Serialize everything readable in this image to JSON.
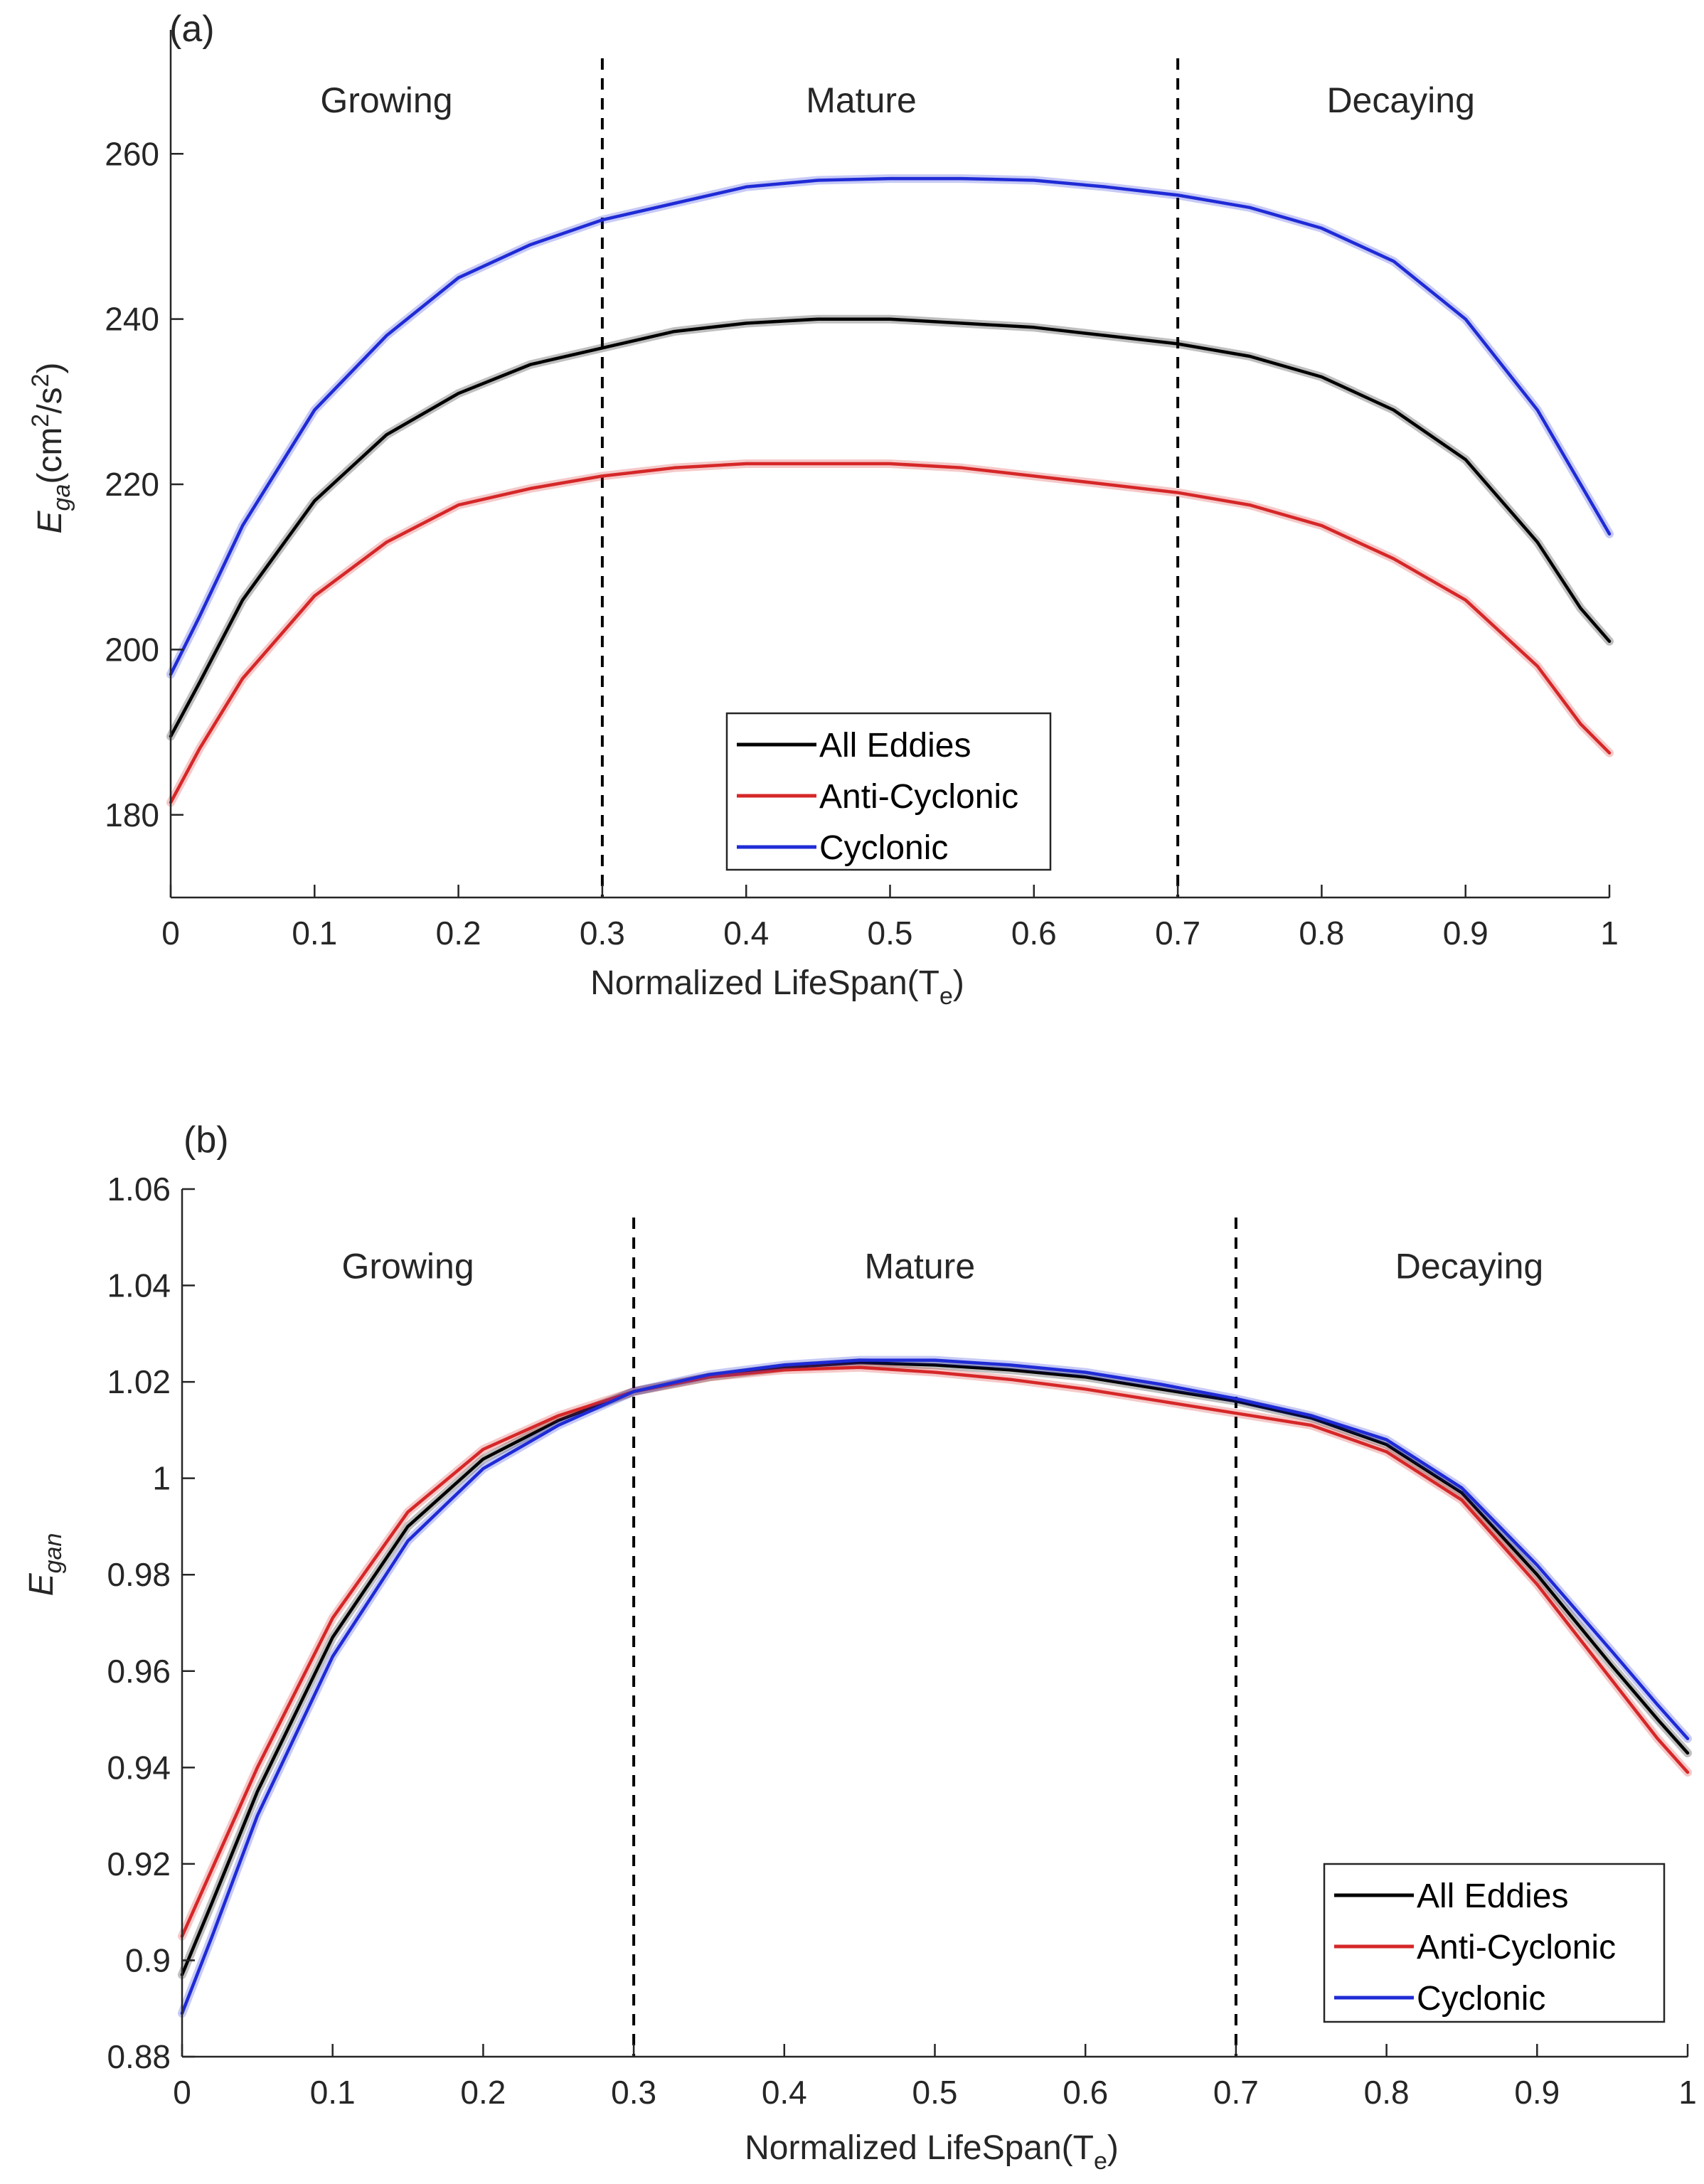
{
  "figure": {
    "colors": {
      "all": "#000000",
      "anti": "#d62728",
      "cyclonic": "#1f2bd6",
      "axis": "#262626",
      "divider": "#000000"
    }
  },
  "chart_data": [
    {
      "type": "line",
      "panel_label": "(a)",
      "xlabel": "Normalized LifeSpan(T",
      "xlabel_sub": "e",
      "xlabel_close": ")",
      "ylabel": {
        "main": "E",
        "sub": "ga",
        "unit_prefix": "(cm",
        "sup1": "2",
        "unit_mid": "/s",
        "sup2": "2",
        "unit_suffix": ")"
      },
      "xlim": [
        0,
        1
      ],
      "ylim": [
        170,
        275
      ],
      "xticks": [
        0,
        0.1,
        0.2,
        0.3,
        0.4,
        0.5,
        0.6,
        0.7,
        0.8,
        0.9,
        1
      ],
      "xtick_labels": [
        "0",
        "0.1",
        "0.2",
        "0.3",
        "0.4",
        "0.5",
        "0.6",
        "0.7",
        "0.8",
        "0.9",
        "1"
      ],
      "yticks": [
        180,
        200,
        220,
        240,
        260
      ],
      "ytick_labels": [
        "180",
        "200",
        "220",
        "240",
        "260"
      ],
      "dividers": [
        0.3,
        0.7
      ],
      "phases": [
        {
          "label": "Growing",
          "x": 0.15
        },
        {
          "label": "Mature",
          "x": 0.48
        },
        {
          "label": "Decaying",
          "x": 0.855
        }
      ],
      "phase_y": 265,
      "legend": {
        "position": "lower-center",
        "entries": [
          "All Eddies",
          "Anti-Cyclonic",
          "Cyclonic"
        ]
      },
      "x": [
        0,
        0.02,
        0.05,
        0.1,
        0.15,
        0.2,
        0.25,
        0.3,
        0.35,
        0.4,
        0.45,
        0.5,
        0.55,
        0.6,
        0.65,
        0.7,
        0.75,
        0.8,
        0.85,
        0.9,
        0.95,
        0.98,
        1
      ],
      "series": [
        {
          "name": "All Eddies",
          "key": "all",
          "values": [
            189.5,
            196,
            206,
            218,
            226,
            231,
            234.5,
            236.5,
            238.5,
            239.5,
            240,
            240,
            239.5,
            239,
            238,
            237,
            235.5,
            233,
            229,
            223,
            213,
            205,
            201
          ]
        },
        {
          "name": "Anti-Cyclonic",
          "key": "anti",
          "values": [
            181.5,
            188,
            196.5,
            206.5,
            213,
            217.5,
            219.5,
            221,
            222,
            222.5,
            222.5,
            222.5,
            222,
            221,
            220,
            219,
            217.5,
            215,
            211,
            206,
            198,
            191,
            187.5
          ]
        },
        {
          "name": "Cyclonic",
          "key": "cyclonic",
          "values": [
            197,
            204,
            215,
            229,
            238,
            245,
            249,
            252,
            254,
            256,
            256.8,
            257,
            257,
            256.8,
            256,
            255,
            253.5,
            251,
            247,
            240,
            229,
            220,
            214
          ]
        }
      ]
    },
    {
      "type": "line",
      "panel_label": "(b)",
      "xlabel": "Normalized LifeSpan(T",
      "xlabel_sub": "e",
      "xlabel_close": ")",
      "ylabel": {
        "main": "E",
        "sub": "gan"
      },
      "xlim": [
        0,
        1
      ],
      "ylim": [
        0.88,
        1.06
      ],
      "xticks": [
        0,
        0.1,
        0.2,
        0.3,
        0.4,
        0.5,
        0.6,
        0.7,
        0.8,
        0.9,
        1
      ],
      "xtick_labels": [
        "0",
        "0.1",
        "0.2",
        "0.3",
        "0.4",
        "0.5",
        "0.6",
        "0.7",
        "0.8",
        "0.9",
        "1"
      ],
      "yticks": [
        0.88,
        0.9,
        0.92,
        0.94,
        0.96,
        0.98,
        1,
        1.02,
        1.04,
        1.06
      ],
      "ytick_labels": [
        "0.88",
        "0.9",
        "0.92",
        "0.94",
        "0.96",
        "0.98",
        "1",
        "1.02",
        "1.04",
        "1.06"
      ],
      "dividers": [
        0.3,
        0.7
      ],
      "phases": [
        {
          "label": "Growing",
          "x": 0.15
        },
        {
          "label": "Mature",
          "x": 0.49
        },
        {
          "label": "Decaying",
          "x": 0.855
        }
      ],
      "phase_y": 1.0415,
      "legend": {
        "position": "lower-right",
        "entries": [
          "All Eddies",
          "Anti-Cyclonic",
          "Cyclonic"
        ]
      },
      "x": [
        0,
        0.02,
        0.05,
        0.1,
        0.15,
        0.2,
        0.25,
        0.3,
        0.35,
        0.4,
        0.45,
        0.5,
        0.55,
        0.6,
        0.65,
        0.7,
        0.75,
        0.8,
        0.85,
        0.9,
        0.95,
        0.98,
        1
      ],
      "series": [
        {
          "name": "All Eddies",
          "key": "all",
          "values": [
            0.897,
            0.912,
            0.935,
            0.967,
            0.99,
            1.004,
            1.012,
            1.018,
            1.021,
            1.023,
            1.024,
            1.0235,
            1.0225,
            1.021,
            1.0185,
            1.016,
            1.0125,
            1.007,
            0.997,
            0.98,
            0.961,
            0.95,
            0.943
          ]
        },
        {
          "name": "Anti-Cyclonic",
          "key": "anti",
          "values": [
            0.905,
            0.919,
            0.94,
            0.971,
            0.993,
            1.006,
            1.013,
            1.018,
            1.021,
            1.0225,
            1.023,
            1.022,
            1.0205,
            1.0185,
            1.016,
            1.0135,
            1.011,
            1.0055,
            0.9955,
            0.978,
            0.958,
            0.946,
            0.939
          ]
        },
        {
          "name": "Cyclonic",
          "key": "cyclonic",
          "values": [
            0.889,
            0.905,
            0.93,
            0.963,
            0.987,
            1.002,
            1.011,
            1.018,
            1.0215,
            1.0235,
            1.0245,
            1.0245,
            1.0235,
            1.022,
            1.0195,
            1.0165,
            1.013,
            1.008,
            0.998,
            0.982,
            0.964,
            0.953,
            0.946
          ]
        }
      ]
    }
  ]
}
